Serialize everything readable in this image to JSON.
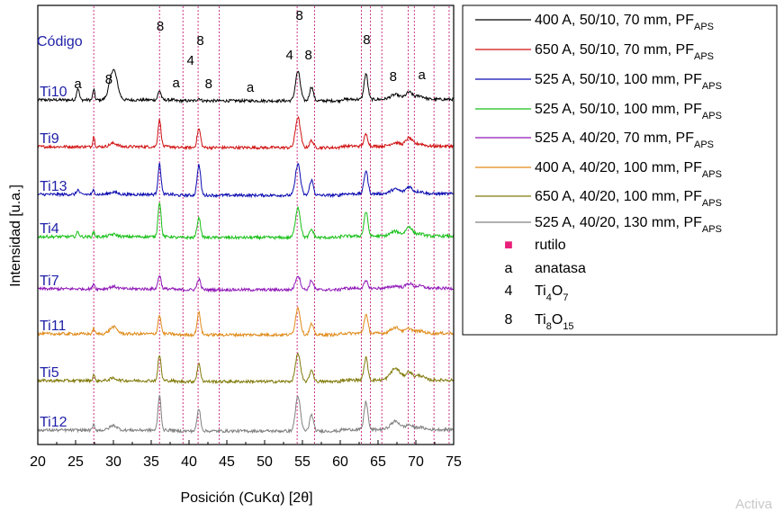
{
  "chart_data": {
    "type": "line",
    "xlabel": "Posición (CuKα) [2θ]",
    "ylabel": "Intensidad [u.a.]",
    "xlim": [
      20,
      75
    ],
    "xticks": [
      20,
      25,
      30,
      35,
      40,
      45,
      50,
      55,
      60,
      65,
      70,
      75
    ],
    "code_header": "Código",
    "reference_lines_rutilo": [
      27.4,
      36.1,
      39.2,
      41.2,
      44.0,
      54.3,
      56.6,
      62.8,
      64.0,
      65.5,
      69.0,
      69.8,
      72.4,
      74.4
    ],
    "peaks": [
      25.3,
      27.4,
      30.0,
      36.1,
      41.3,
      54.4,
      56.2,
      63.4,
      67.3,
      69.1,
      70.5
    ],
    "series": [
      {
        "code": "Ti10",
        "color": "#000000",
        "legend_main": "400 A, 50/10, 70 mm, PF",
        "legend_sub": "APS",
        "intensity": [
          1.0,
          0.9,
          2.6,
          0.8,
          0.2,
          2.5,
          1.2,
          2.2,
          0.4,
          0.6,
          0.3
        ]
      },
      {
        "code": "Ti9",
        "color": "#d01010",
        "legend_main": "650 A, 50/10, 70 mm, PF",
        "legend_sub": "APS",
        "intensity": [
          0.0,
          0.9,
          0.3,
          2.3,
          1.6,
          2.6,
          0.6,
          1.0,
          0.3,
          0.7,
          0.2
        ]
      },
      {
        "code": "Ti13",
        "color": "#0a0ab0",
        "legend_main": "525 A, 50/10, 100 mm, PF",
        "legend_sub": "APS",
        "intensity": [
          0.4,
          0.4,
          0.2,
          2.6,
          2.6,
          2.7,
          1.3,
          2.0,
          0.4,
          0.6,
          0.2
        ]
      },
      {
        "code": "Ti4",
        "color": "#18c018",
        "legend_main": "525 A, 50/10, 100 mm, PF",
        "legend_sub": "APS",
        "intensity": [
          0.4,
          0.4,
          0.2,
          3.0,
          1.7,
          2.6,
          0.7,
          2.1,
          0.4,
          0.8,
          0.2
        ]
      },
      {
        "code": "Ti7",
        "color": "#9018b8",
        "legend_main": "525 A, 40/20, 70 mm, PF",
        "legend_sub": "APS",
        "intensity": [
          0.0,
          0.5,
          0.2,
          1.2,
          0.9,
          1.2,
          0.8,
          0.6,
          0.2,
          0.4,
          0.2
        ]
      },
      {
        "code": "Ti11",
        "color": "#e08a18",
        "legend_main": "400 A, 40/20, 100 mm, PF",
        "legend_sub": "APS",
        "intensity": [
          0.0,
          0.5,
          0.6,
          1.6,
          1.9,
          2.3,
          0.9,
          1.6,
          0.5,
          0.4,
          0.2
        ]
      },
      {
        "code": "Ti5",
        "color": "#807a0a",
        "legend_main": "650 A, 40/20, 100 mm, PF",
        "legend_sub": "APS",
        "intensity": [
          0.0,
          0.5,
          0.2,
          2.2,
          1.5,
          2.4,
          1.0,
          1.9,
          1.0,
          0.7,
          0.4
        ]
      },
      {
        "code": "Ti12",
        "color": "#808080",
        "legend_main": "525 A, 40/20, 130 mm, PF",
        "legend_sub": "APS",
        "intensity": [
          0.0,
          0.5,
          0.4,
          3.0,
          1.9,
          3.0,
          1.4,
          2.4,
          0.7,
          0.4,
          0.2
        ]
      }
    ],
    "annotations": [
      {
        "text": "8",
        "x": 36.2,
        "series": "Ti10"
      },
      {
        "text": "8",
        "x": 41.5,
        "series": "Ti10"
      },
      {
        "text": "4",
        "x": 40.2,
        "series": "Ti10"
      },
      {
        "text": "8",
        "x": 29.4,
        "series": "Ti10"
      },
      {
        "text": "a",
        "x": 25.3,
        "series": "Ti10"
      },
      {
        "text": "a",
        "x": 38.3,
        "series": "Ti10"
      },
      {
        "text": "8",
        "x": 42.6,
        "series": "Ti10"
      },
      {
        "text": "a",
        "x": 48.1,
        "series": "Ti10"
      },
      {
        "text": "8",
        "x": 54.6,
        "series": "Ti10"
      },
      {
        "text": "4",
        "x": 53.3,
        "series": "Ti10"
      },
      {
        "text": "8",
        "x": 55.8,
        "series": "Ti10"
      },
      {
        "text": "8",
        "x": 63.5,
        "series": "Ti10"
      },
      {
        "text": "8",
        "x": 67.0,
        "series": "Ti10"
      },
      {
        "text": "a",
        "x": 70.8,
        "series": "Ti10"
      }
    ],
    "legend_extra": [
      {
        "symbol": "■",
        "label": "rutilo",
        "sub": "",
        "after": "",
        "sub2": "",
        "color": "#e8207a"
      },
      {
        "symbol": "a",
        "label": "anatasa",
        "sub": "",
        "after": "",
        "sub2": "",
        "color": "#000000"
      },
      {
        "symbol": "4",
        "label": "Ti",
        "sub": "4",
        "after": "O",
        "sub2": "7",
        "color": "#000000"
      },
      {
        "symbol": "8",
        "label": "Ti",
        "sub": "8",
        "after": "O",
        "sub2": "15",
        "color": "#000000"
      }
    ],
    "legend_placement": "right",
    "grid": false
  },
  "watermark": "Activa"
}
